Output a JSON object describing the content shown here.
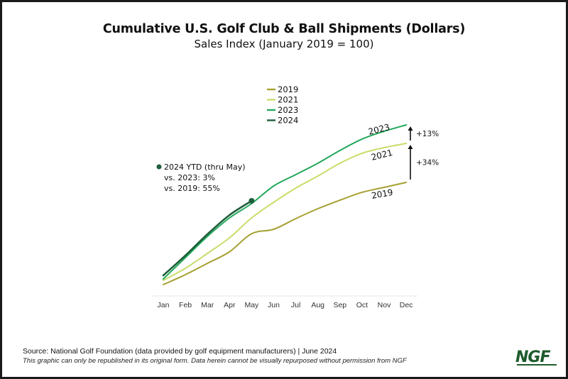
{
  "chart_data": {
    "type": "line",
    "title": "Cumulative U.S. Golf Club & Ball Shipments (Dollars)",
    "subtitle": "Sales Index (January 2019 = 100)",
    "xlabel": "",
    "ylabel": "Sales Index",
    "categories": [
      "Jan",
      "Feb",
      "Mar",
      "Apr",
      "May",
      "Jun",
      "Jul",
      "Aug",
      "Sep",
      "Oct",
      "Nov",
      "Dec"
    ],
    "ylim": [
      0,
      2000
    ],
    "grid": false,
    "legend_position": "top-center",
    "series": [
      {
        "name": "2019",
        "color": "#a7a032",
        "values": [
          100,
          212,
          340,
          470,
          674,
          724,
          844,
          956,
          1052,
          1140,
          1196,
          1252
        ]
      },
      {
        "name": "2021",
        "color": "#c9dd6a",
        "values": [
          148,
          284,
          452,
          628,
          852,
          1028,
          1188,
          1324,
          1468,
          1580,
          1644,
          1692
        ]
      },
      {
        "name": "2023",
        "color": "#22a85a",
        "values": [
          164,
          404,
          644,
          852,
          1014,
          1212,
          1340,
          1468,
          1612,
          1740,
          1828,
          1900
        ]
      },
      {
        "name": "2024",
        "color": "#1e5e3a",
        "values": [
          204,
          428,
          668,
          884,
          1044
        ]
      }
    ],
    "series_labels": [
      {
        "series": "2023",
        "text": "2023"
      },
      {
        "series": "2021",
        "text": "2021"
      },
      {
        "series": "2019",
        "text": "2019"
      }
    ],
    "annotations": {
      "ytd": {
        "marker_color": "#1e5e3a",
        "lines": [
          "2024 YTD (thru May)",
          "vs. 2023: 3%",
          "vs. 2019: 55%"
        ]
      },
      "arrows": [
        {
          "from": "2021",
          "to": "2023",
          "text": "+13%"
        },
        {
          "from": "2019",
          "to": "2021",
          "text": "+34%"
        }
      ]
    }
  },
  "footer": {
    "source": "Source: National Golf Foundation (data provided by golf equipment manufacturers) | June 2024",
    "disclaimer": "This graphic can only be republished in its original form. Data herein cannot be visually repurposed without permission from NGF",
    "logo_text": "NGF",
    "logo_color": "#1f5b2c"
  }
}
